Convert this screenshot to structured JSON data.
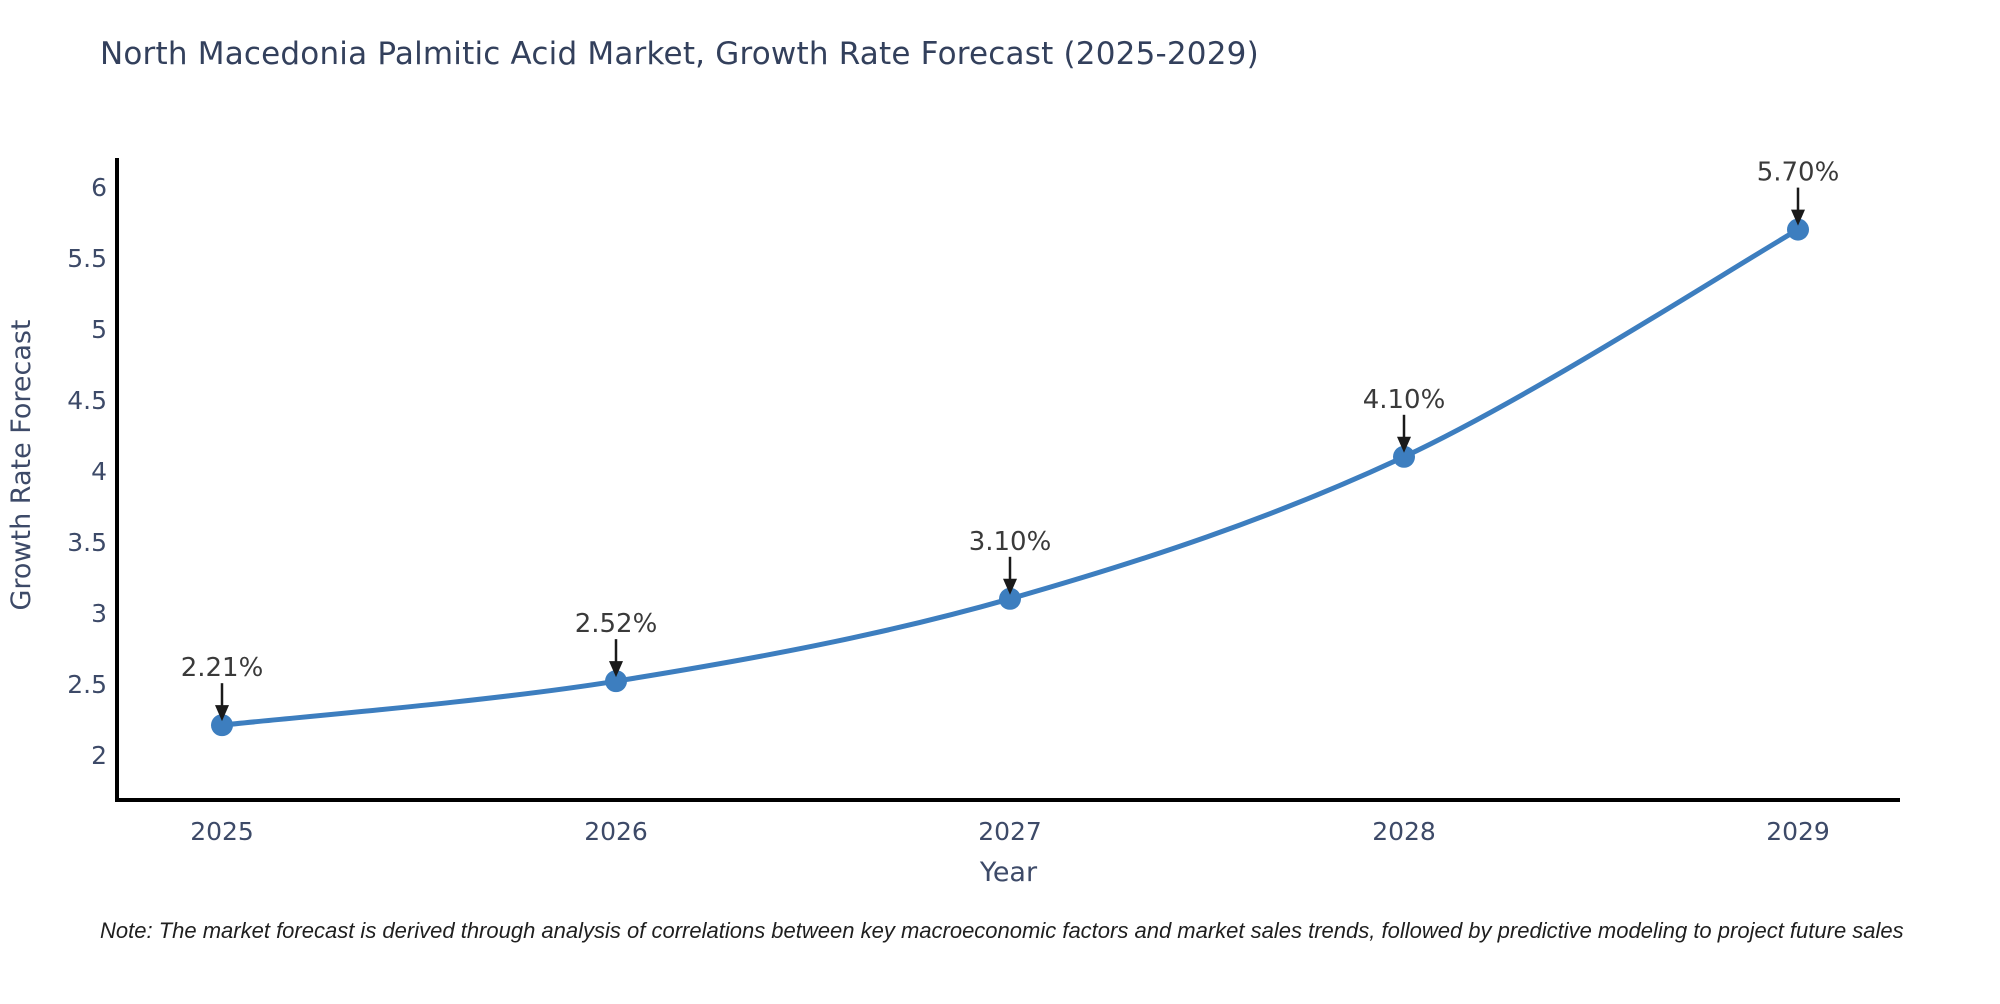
{
  "chart_data": {
    "type": "line",
    "title": "North Macedonia Palmitic Acid Market, Growth Rate Forecast (2025-2029)",
    "xlabel": "Year",
    "ylabel": "Growth Rate Forecast",
    "categories": [
      "2025",
      "2026",
      "2027",
      "2028",
      "2029"
    ],
    "values": [
      2.21,
      2.52,
      3.1,
      4.1,
      5.7
    ],
    "point_labels": [
      "2.21%",
      "2.52%",
      "3.10%",
      "4.10%",
      "5.70%"
    ],
    "y_ticks": [
      2,
      2.5,
      3,
      3.5,
      4,
      4.5,
      5,
      5.5,
      6
    ],
    "y_tick_labels": [
      "2",
      "2.5",
      "3",
      "3.5",
      "4",
      "4.5",
      "5",
      "5.5",
      "6"
    ],
    "ylim": [
      1.68,
      6.2
    ],
    "grid": false,
    "legend": "none",
    "line_shape": "spline",
    "note": "Note: The market forecast is derived through analysis of correlations between key macroeconomic factors and market sales trends, followed by predictive modeling to project future sales",
    "colors": {
      "line": "#3d7ebf",
      "marker": "#3d7ebf",
      "axis": "#000000",
      "title_text": "#33405c",
      "tick_text": "#3d4a68",
      "point_label_text": "#3a3a3a",
      "note_text": "#1f1f1f",
      "background": "#ffffff"
    }
  }
}
